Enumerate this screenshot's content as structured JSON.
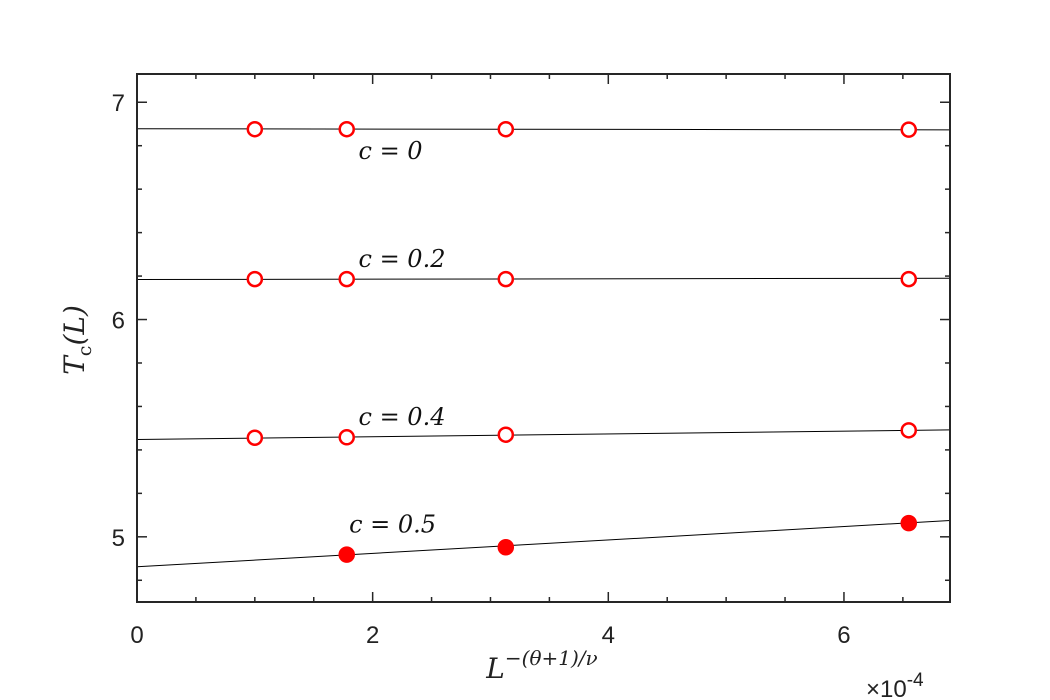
{
  "chart_data": {
    "type": "scatter",
    "title": "",
    "xlabel": "L^-(θ+1)/ν",
    "ylabel": "Tc(L)",
    "x_exponent_label": "×10-4",
    "x_scale": 0.0001,
    "xlim": [
      0,
      6.9
    ],
    "ylim": [
      4.7,
      7.13
    ],
    "x_ticks": [
      0,
      2,
      4,
      6
    ],
    "x_tick_labels": [
      "0",
      "2",
      "4",
      "6"
    ],
    "y_ticks": [
      5,
      6,
      7
    ],
    "y_tick_labels": [
      "5",
      "6",
      "7"
    ],
    "grid": false,
    "legend": "none",
    "marker_color": "#ff0000",
    "line_color": "#000000",
    "series": [
      {
        "name": "c = 0",
        "marker": "open-circle",
        "x": [
          1.0,
          1.78,
          3.13,
          6.55
        ],
        "y": [
          6.876,
          6.876,
          6.876,
          6.874
        ],
        "fit": {
          "x": [
            0,
            6.9
          ],
          "y": [
            6.878,
            6.873
          ]
        }
      },
      {
        "name": "c = 0.2",
        "marker": "open-circle",
        "x": [
          1.0,
          1.78,
          3.13,
          6.55
        ],
        "y": [
          6.186,
          6.186,
          6.186,
          6.186
        ],
        "fit": {
          "x": [
            0,
            6.9
          ],
          "y": [
            6.184,
            6.19
          ]
        }
      },
      {
        "name": "c = 0.4",
        "marker": "open-circle",
        "x": [
          1.0,
          1.78,
          3.13,
          6.55
        ],
        "y": [
          5.456,
          5.458,
          5.47,
          5.49
        ],
        "fit": {
          "x": [
            0,
            6.9
          ],
          "y": [
            5.448,
            5.492
          ]
        }
      },
      {
        "name": "c = 0.5",
        "marker": "filled-circle",
        "x": [
          1.78,
          3.13,
          6.55
        ],
        "y": [
          4.918,
          4.952,
          5.063
        ],
        "fit": {
          "x": [
            0,
            6.9
          ],
          "y": [
            4.862,
            5.075
          ]
        }
      }
    ]
  }
}
